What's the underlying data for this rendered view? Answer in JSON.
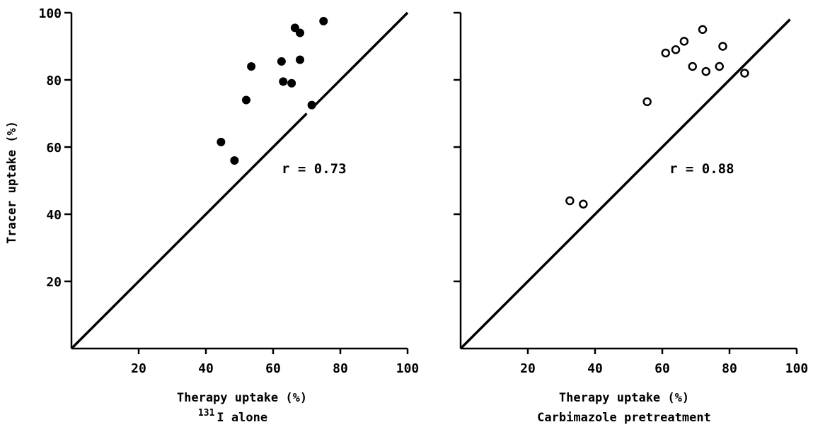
{
  "chart_data": [
    {
      "type": "scatter",
      "ylabel": "Tracer uptake (%)",
      "xlabel": "Therapy uptake (%)",
      "subtitle_superscript": "131",
      "subtitle": "I alone",
      "annotation": "r = 0.73",
      "xlim": [
        0,
        100
      ],
      "ylim": [
        0,
        100
      ],
      "xticks": [
        20,
        40,
        60,
        80,
        100
      ],
      "yticks": [
        20,
        40,
        60,
        80,
        100
      ],
      "marker": "filled-circle",
      "identity_line": true,
      "points": [
        {
          "x": 44.5,
          "y": 61.5
        },
        {
          "x": 48.5,
          "y": 56.0
        },
        {
          "x": 52.0,
          "y": 74.0
        },
        {
          "x": 53.5,
          "y": 84.0
        },
        {
          "x": 62.5,
          "y": 85.5
        },
        {
          "x": 63.0,
          "y": 79.5
        },
        {
          "x": 65.5,
          "y": 79.0
        },
        {
          "x": 66.5,
          "y": 95.5
        },
        {
          "x": 68.0,
          "y": 94.0
        },
        {
          "x": 68.0,
          "y": 86.0
        },
        {
          "x": 71.5,
          "y": 72.5
        },
        {
          "x": 75.0,
          "y": 97.5
        }
      ]
    },
    {
      "type": "scatter",
      "ylabel": "",
      "xlabel": "Therapy uptake (%)",
      "subtitle": "Carbimazole pretreatment",
      "annotation": "r = 0.88",
      "xlim": [
        0,
        100
      ],
      "ylim": [
        0,
        100
      ],
      "xticks": [
        20,
        40,
        60,
        80,
        100
      ],
      "yticks": [
        20,
        40,
        60,
        80,
        100
      ],
      "marker": "open-circle",
      "identity_line": true,
      "points": [
        {
          "x": 32.5,
          "y": 44.0
        },
        {
          "x": 36.5,
          "y": 43.0
        },
        {
          "x": 55.5,
          "y": 73.5
        },
        {
          "x": 61.0,
          "y": 88.0
        },
        {
          "x": 64.0,
          "y": 89.0
        },
        {
          "x": 66.5,
          "y": 91.5
        },
        {
          "x": 69.0,
          "y": 84.0
        },
        {
          "x": 72.0,
          "y": 95.0
        },
        {
          "x": 73.0,
          "y": 82.5
        },
        {
          "x": 77.0,
          "y": 84.0
        },
        {
          "x": 78.0,
          "y": 90.0
        },
        {
          "x": 84.5,
          "y": 82.0
        }
      ]
    }
  ]
}
